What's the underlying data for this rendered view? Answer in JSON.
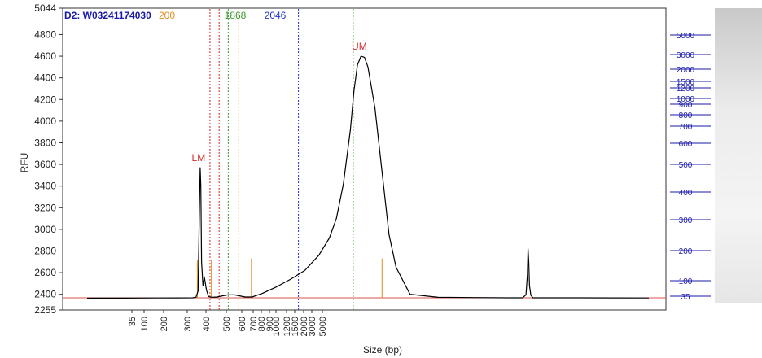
{
  "chart_data": {
    "type": "line",
    "title": "D2: W0324117403",
    "title_suffix": "0",
    "xlabel": "Size (bp)",
    "ylabel": "RFU",
    "ylim": [
      2255,
      5044
    ],
    "y_ticks": [
      2255,
      2400,
      2600,
      2800,
      3000,
      3200,
      3400,
      3600,
      3800,
      4000,
      4200,
      4400,
      4600,
      4800,
      5044
    ],
    "x_ticks": [
      "35",
      "100",
      "200",
      "300",
      "400",
      "500",
      "600",
      "700",
      "800",
      "900",
      "1000",
      "1200",
      "1500",
      "2000",
      "3000",
      "5000"
    ],
    "ladder_scale": [
      "5000",
      "3000",
      "2000",
      "1500",
      "1200",
      "1000",
      "900",
      "800",
      "700",
      "600",
      "500",
      "400",
      "300",
      "200",
      "100",
      "35"
    ],
    "markers": [
      {
        "label": "LM",
        "x": "35",
        "y": 3570
      },
      {
        "label": "UM",
        "x": "5000",
        "y": 4600
      }
    ],
    "top_labels": [
      {
        "text": "200",
        "color": "#e08a1e"
      },
      {
        "text": "1868",
        "color": "#3a9a2e"
      },
      {
        "text": "2046",
        "color": "#2233cc"
      }
    ],
    "series": [
      {
        "color": "#000000",
        "x": [
          0,
          50,
          100,
          130,
          150,
          155,
          158,
          160,
          161,
          162,
          163,
          165,
          167,
          170,
          173,
          178,
          185,
          200,
          210,
          225,
          235,
          250,
          270,
          290,
          310,
          330,
          345,
          355,
          365,
          375,
          380,
          385,
          390,
          395,
          400,
          410,
          420,
          430,
          440,
          460,
          500,
          550,
          600,
          620,
          625,
          627,
          628,
          629,
          630,
          632,
          635,
          700,
          750,
          800
        ],
        "y": [
          2365,
          2365,
          2366,
          2367,
          2368,
          2372,
          2430,
          3200,
          3570,
          3400,
          2700,
          2480,
          2560,
          2440,
          2380,
          2372,
          2375,
          2395,
          2395,
          2375,
          2375,
          2410,
          2470,
          2540,
          2620,
          2760,
          2920,
          3100,
          3420,
          3920,
          4280,
          4520,
          4600,
          4590,
          4500,
          4120,
          3530,
          2950,
          2650,
          2400,
          2372,
          2370,
          2368,
          2368,
          2395,
          2580,
          2820,
          2700,
          2480,
          2390,
          2368,
          2368,
          2367,
          2366
        ]
      }
    ],
    "guides": [
      {
        "x": 175,
        "color": "#d42a2a"
      },
      {
        "x": 188,
        "color": "#d42a2a"
      },
      {
        "x": 201,
        "color": "#3a9a2e"
      },
      {
        "x": 216,
        "color": "#e08a1e"
      },
      {
        "x": 301,
        "color": "#2233cc"
      },
      {
        "x": 379,
        "color": "#3a9a2e"
      }
    ],
    "ladder_peaks": [
      {
        "x": 157,
        "y": 2720
      },
      {
        "x": 177,
        "y": 2720
      },
      {
        "x": 234,
        "y": 2730
      },
      {
        "x": 420,
        "y": 2730
      }
    ],
    "grid": false,
    "legend": "none"
  }
}
